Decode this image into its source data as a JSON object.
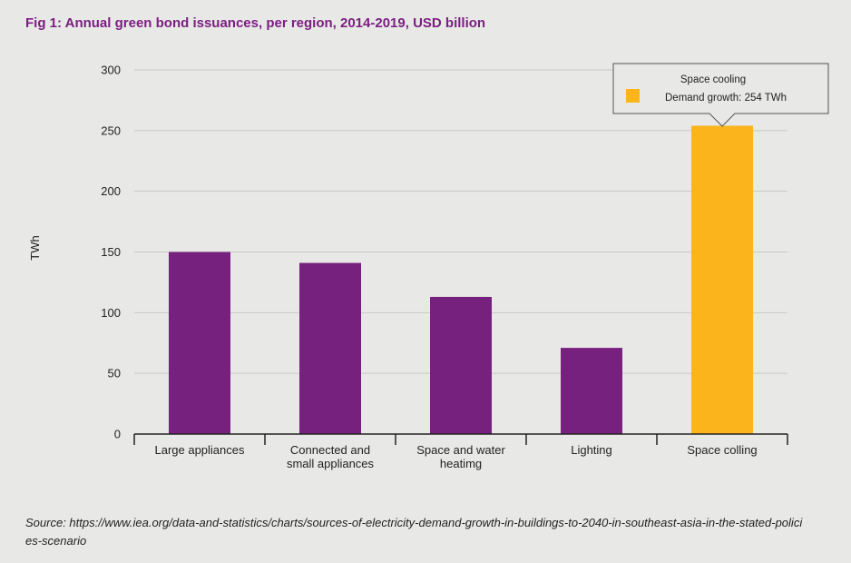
{
  "title": "Fig 1: Annual green bond issuances, per region, 2014-2019, USD billion",
  "source": "Source: https://www.iea.org/data-and-statistics/charts/sources-of-electricity-demand-growth-in-buildings-to-2040-in-southeast-asia-in-the-stated-policies-scenario",
  "colors": {
    "bar": "#77217f",
    "highlight": "#fbb41c",
    "grid": "#c9c9c7",
    "axis": "#222222",
    "title": "#7b1f82"
  },
  "tooltip": {
    "title": "Space cooling",
    "label": "Demand growth: 254 TWh"
  },
  "chart_data": {
    "type": "bar",
    "title": "Fig 1: Annual green bond issuances, per region, 2014-2019, USD billion",
    "ylabel": "TWh",
    "xlabel": "",
    "ylim": [
      0,
      300
    ],
    "yticks": [
      0,
      50,
      100,
      150,
      200,
      250,
      300
    ],
    "grid": true,
    "categories": [
      [
        "Large appliances"
      ],
      [
        "Connected and",
        "small appliances"
      ],
      [
        "Space and water",
        "heatimg"
      ],
      [
        "Lighting"
      ],
      [
        "Space colling"
      ]
    ],
    "values": [
      150,
      141,
      113,
      71,
      254
    ],
    "highlight_index": 4
  }
}
